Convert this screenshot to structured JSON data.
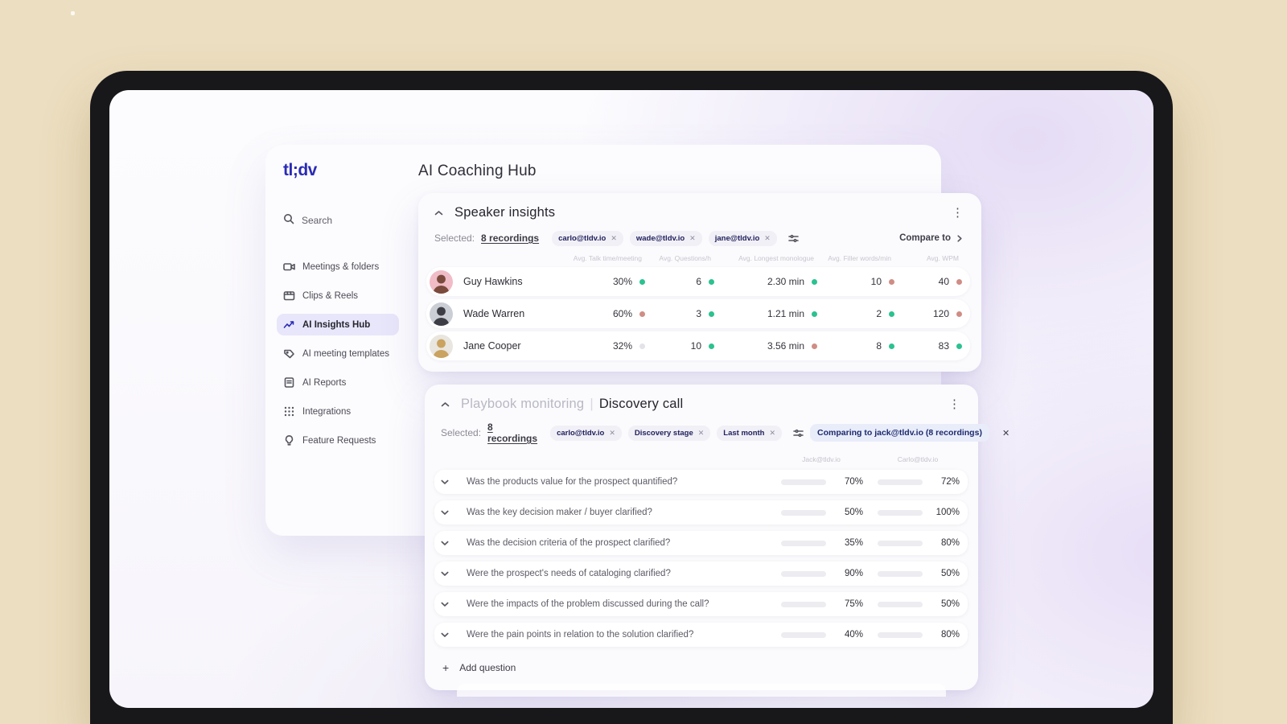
{
  "app": {
    "logo": "tl;dv",
    "page_title": "AI Coaching Hub"
  },
  "sidebar": {
    "search_label": "Search",
    "items": [
      {
        "label": "Meetings & folders",
        "icon": "video-camera"
      },
      {
        "label": "Clips & Reels",
        "icon": "clapperboard"
      },
      {
        "label": "AI Insights Hub",
        "icon": "trending-chart",
        "active": true
      },
      {
        "label": "AI meeting templates",
        "icon": "template-tag"
      },
      {
        "label": "AI Reports",
        "icon": "report-doc"
      },
      {
        "label": "Integrations",
        "icon": "grid-dots"
      },
      {
        "label": "Feature Requests",
        "icon": "lightbulb"
      }
    ]
  },
  "speaker_insights": {
    "title": "Speaker insights",
    "selected_label": "Selected:",
    "selected_link": "8 recordings",
    "chips": [
      "carlo@tldv.io",
      "wade@tldv.io",
      "jane@tldv.io"
    ],
    "compare_button": "Compare to",
    "columns": [
      "Avg. Talk time/meeting",
      "Avg. Questions/h",
      "Avg. Longest monologue",
      "Avg. Filler words/min",
      "Avg. WPM"
    ],
    "rows": [
      {
        "name": "Guy Hawkins",
        "avatar_bg": "#f0bcc6",
        "avatar_fg": "#7a4a3c",
        "metrics": [
          {
            "value": "30%",
            "status": "good"
          },
          {
            "value": "6",
            "status": "good"
          },
          {
            "value": "2.30 min",
            "status": "good"
          },
          {
            "value": "10",
            "status": "bad"
          },
          {
            "value": "40",
            "status": "bad"
          }
        ]
      },
      {
        "name": "Wade Warren",
        "avatar_bg": "#ccced6",
        "avatar_fg": "#3d3d46",
        "metrics": [
          {
            "value": "60%",
            "status": "bad"
          },
          {
            "value": "3",
            "status": "good"
          },
          {
            "value": "1.21 min",
            "status": "good"
          },
          {
            "value": "2",
            "status": "good"
          },
          {
            "value": "120",
            "status": "bad"
          }
        ]
      },
      {
        "name": "Jane Cooper",
        "avatar_bg": "#e9e5df",
        "avatar_fg": "#c9a35f",
        "metrics": [
          {
            "value": "32%",
            "status": "neutral"
          },
          {
            "value": "10",
            "status": "good"
          },
          {
            "value": "3.56 min",
            "status": "bad"
          },
          {
            "value": "8",
            "status": "good"
          },
          {
            "value": "83",
            "status": "good"
          }
        ]
      }
    ]
  },
  "playbook": {
    "title_muted": "Playbook monitoring",
    "divider": "|",
    "title": "Discovery call",
    "selected_label": "Selected:",
    "selected_link": "8 recordings",
    "chips": [
      "carlo@tldv.io",
      "Discovery stage",
      "Last month"
    ],
    "comparing_chip": "Comparing to jack@tldv.io (8 recordings)",
    "col_left": "Jack@tldv.io",
    "col_right": "Carlo@tldv.io",
    "questions": [
      {
        "text": "Was the products value for the prospect quantified?",
        "v1": "70%",
        "s1": "good",
        "v2": "72%",
        "s2": "good"
      },
      {
        "text": "Was the key decision maker / buyer clarified?",
        "v1": "50%",
        "s1": "bad",
        "v2": "100%",
        "s2": "good"
      },
      {
        "text": "Was the decision criteria of the prospect clarified?",
        "v1": "35%",
        "s1": "bad",
        "v2": "80%",
        "s2": "good"
      },
      {
        "text": "Were the prospect's needs of cataloging clarified?",
        "v1": "90%",
        "s1": "good",
        "v2": "50%",
        "s2": "bad"
      },
      {
        "text": "Were the impacts of the problem discussed during the call?",
        "v1": "75%",
        "s1": "good",
        "v2": "50%",
        "s2": "bad"
      },
      {
        "text": "Were the pain points in relation to the solution clarified?",
        "v1": "40%",
        "s1": "bad",
        "v2": "80%",
        "s2": "good"
      }
    ],
    "add_question": "Add question"
  },
  "colors": {
    "brand_indigo": "#2b2bb5",
    "good_green": "#2cc191",
    "bad_salmon_bar": "#f0a79a",
    "bad_dot": "#cf8d85",
    "neutral_dot": "#e3e3e8",
    "comparing_chip_bg": "#e9edfa",
    "background_beige": "#ecdec0"
  }
}
